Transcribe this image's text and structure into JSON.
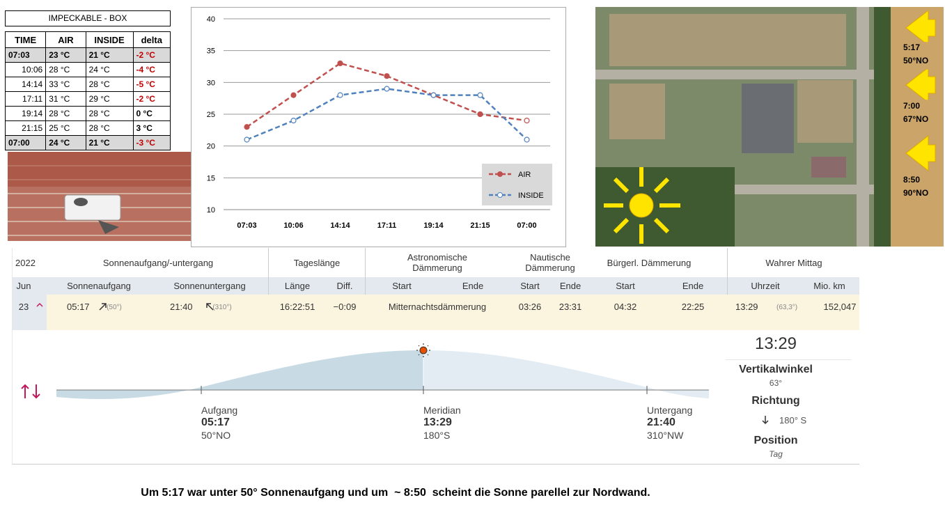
{
  "box_table": {
    "title": "IMPECKABLE - BOX",
    "columns": [
      "TIME",
      "AIR",
      "INSIDE",
      "delta"
    ],
    "rows": [
      [
        "07:03",
        "23 °C",
        "21 °C",
        "-2 °C"
      ],
      [
        "10:06",
        "28 °C",
        "24 °C",
        "-4 °C"
      ],
      [
        "14:14",
        "33 °C",
        "28 °C",
        "-5 °C"
      ],
      [
        "17:11",
        "31 °C",
        "29 °C",
        "-2 °C"
      ],
      [
        "19:14",
        "28 °C",
        "28 °C",
        "0 °C"
      ],
      [
        "21:15",
        "25 °C",
        "28 °C",
        "3 °C"
      ],
      [
        "07:00",
        "24 °C",
        "21 °C",
        "-3 °C"
      ]
    ]
  },
  "chart_data": {
    "type": "line",
    "categories": [
      "07:03",
      "10:06",
      "14:14",
      "17:11",
      "19:14",
      "21:15",
      "07:00"
    ],
    "series": [
      {
        "name": "AIR",
        "color": "#c0504d",
        "values": [
          23,
          28,
          33,
          31,
          28,
          25,
          24
        ]
      },
      {
        "name": "INSIDE",
        "color": "#4f81bd",
        "values": [
          21,
          24,
          28,
          29,
          28,
          28,
          21
        ]
      }
    ],
    "ylim": [
      10,
      40
    ],
    "yticks": [
      10,
      15,
      20,
      25,
      30,
      35,
      40
    ],
    "grid": true,
    "legend": "bottom-right"
  },
  "aerial": {
    "labels": [
      [
        "5:17",
        "50°NO"
      ],
      [
        "7:00",
        "67°NO"
      ],
      [
        "8:50",
        "90°NO"
      ]
    ]
  },
  "sun_table": {
    "year": "2022",
    "rise_set": "Sonnenaufgang/-untergang",
    "day_length": "Tageslänge",
    "astro": "Astronomische Dämmerung",
    "nautic": "Nautische Dämmerung",
    "civil": "Bürgerl. Dämmerung",
    "noon": "Wahrer Mittag",
    "sub": [
      "Jun",
      "Sonnenaufgang",
      "Sonnenuntergang",
      "Länge",
      "Diff.",
      "Start",
      "Ende",
      "Start",
      "Ende",
      "Start",
      "Ende",
      "Uhrzeit",
      "Mio. km"
    ],
    "row": [
      "23",
      "05:17",
      "(50°)",
      "21:40",
      "(310°)",
      "16:22:51",
      "−0:09",
      "Mitternachtsdämmerung",
      "03:26",
      "23:31",
      "04:32",
      "22:25",
      "13:29",
      "(63,3°)",
      "152,047"
    ]
  },
  "sun_panel": {
    "events": [
      {
        "label": "Aufgang",
        "time": "05:17",
        "direction": "50°NO"
      },
      {
        "label": "Meridian",
        "time": "13:29",
        "direction": "180°S"
      },
      {
        "label": "Untergang",
        "time": "21:40",
        "direction": "310°NW"
      }
    ],
    "time": "13:29",
    "vertical_label": "Vertikalwinkel",
    "vertical": "63°",
    "direction_label": "Richtung",
    "direction": "180° S",
    "position_label": "Position",
    "position": "Tag"
  },
  "caption": "Um 5:17 war unter 50° Sonnenaufgang und um  ~ 8:50  scheint die Sonne parellel zur Nordwand."
}
